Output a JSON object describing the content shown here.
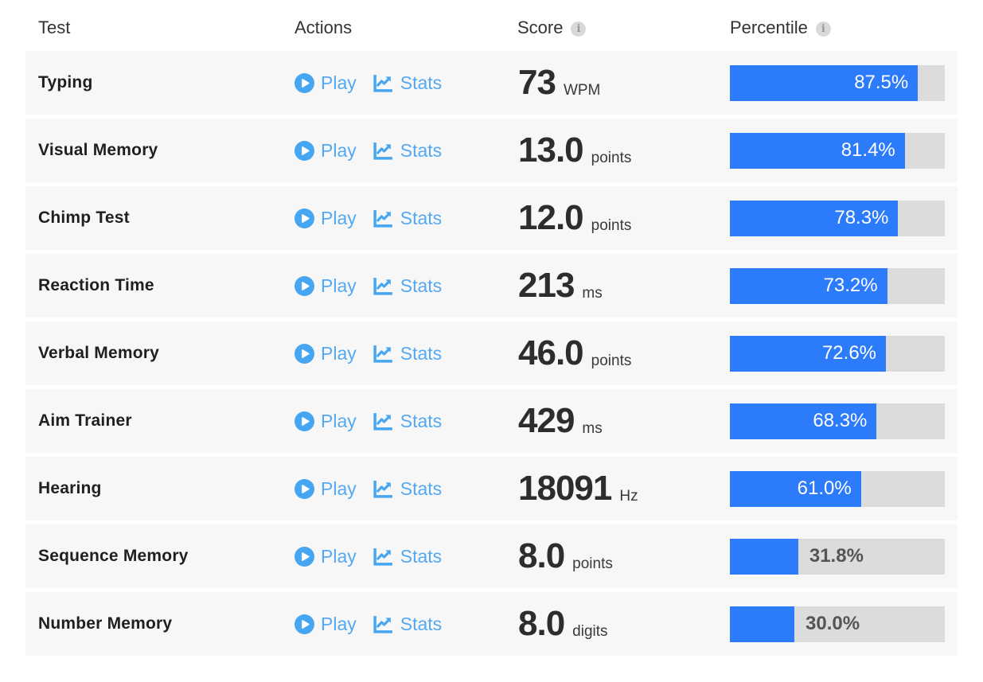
{
  "header": {
    "test": "Test",
    "actions": "Actions",
    "score": "Score",
    "percentile": "Percentile",
    "score_info_glyph": "i",
    "percentile_info_glyph": "i"
  },
  "actions": {
    "play_label": "Play",
    "stats_label": "Stats"
  },
  "colors": {
    "bar_fill": "#2b7bfa",
    "bar_track": "#dcdcdc",
    "link_blue": "#55a9f2",
    "icon_blue": "#47a6f1",
    "row_bg": "#f7f7f7"
  },
  "rows": [
    {
      "test": "Typing",
      "score": "73",
      "unit": "WPM",
      "percentile": 87.5,
      "percentile_label": "87.5%"
    },
    {
      "test": "Visual Memory",
      "score": "13.0",
      "unit": "points",
      "percentile": 81.4,
      "percentile_label": "81.4%"
    },
    {
      "test": "Chimp Test",
      "score": "12.0",
      "unit": "points",
      "percentile": 78.3,
      "percentile_label": "78.3%"
    },
    {
      "test": "Reaction Time",
      "score": "213",
      "unit": "ms",
      "percentile": 73.2,
      "percentile_label": "73.2%"
    },
    {
      "test": "Verbal Memory",
      "score": "46.0",
      "unit": "points",
      "percentile": 72.6,
      "percentile_label": "72.6%"
    },
    {
      "test": "Aim Trainer",
      "score": "429",
      "unit": "ms",
      "percentile": 68.3,
      "percentile_label": "68.3%"
    },
    {
      "test": "Hearing",
      "score": "18091",
      "unit": "Hz",
      "percentile": 61.0,
      "percentile_label": "61.0%"
    },
    {
      "test": "Sequence Memory",
      "score": "8.0",
      "unit": "points",
      "percentile": 31.8,
      "percentile_label": "31.8%"
    },
    {
      "test": "Number Memory",
      "score": "8.0",
      "unit": "digits",
      "percentile": 30.0,
      "percentile_label": "30.0%"
    }
  ]
}
